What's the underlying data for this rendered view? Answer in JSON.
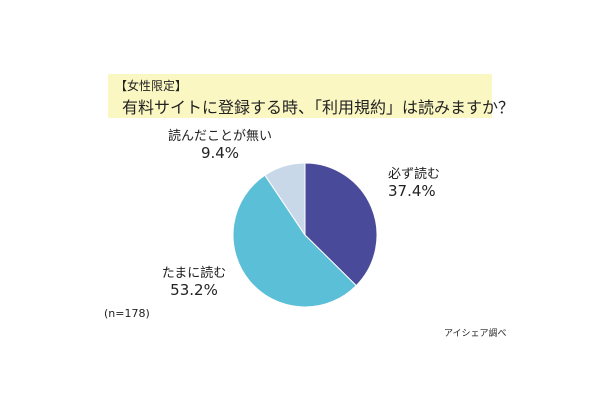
{
  "chart_data": {
    "type": "pie",
    "title_prefix": "【女性限定】",
    "title": "有料サイトに登録する時、「利用規約」は読みますか？",
    "categories": [
      "必ず読む",
      "たまに読む",
      "読んだことが無い"
    ],
    "values": [
      37.4,
      53.2,
      9.4
    ],
    "value_labels": [
      "37.4%",
      "53.2%",
      "9.4%"
    ],
    "colors": [
      "#4a4a9a",
      "#5bbfd8",
      "#c8d8e8"
    ],
    "sample_note": "(n=178)",
    "source": "アイシェア調べ"
  }
}
